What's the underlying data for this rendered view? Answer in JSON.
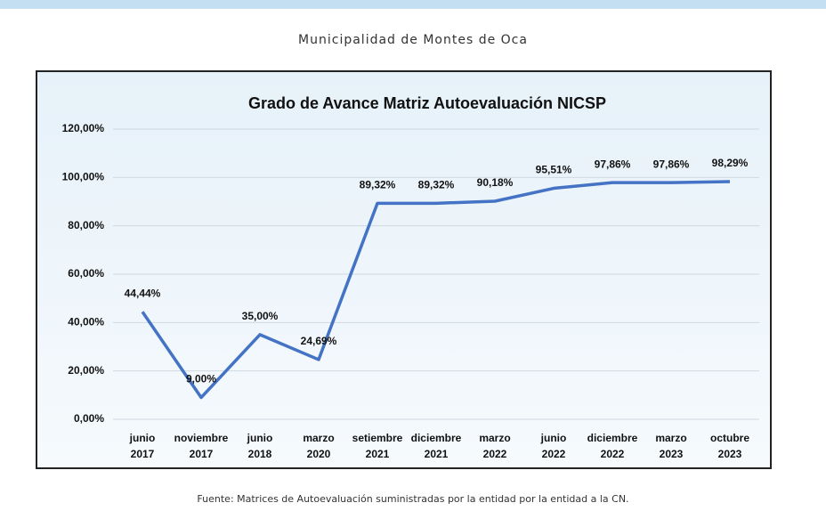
{
  "header": "Municipalidad de Montes de Oca",
  "source": "Fuente: Matrices de Autoevaluación suministradas por la entidad por la entidad a la CN.",
  "chart_data": {
    "type": "line",
    "title": "Grado de Avance Matriz Autoevaluación NICSP",
    "categories": [
      "junio 2017",
      "noviembre 2017",
      "junio 2018",
      "marzo 2020",
      "setiembre 2021",
      "diciembre 2021",
      "marzo 2022",
      "junio 2022",
      "diciembre 2022",
      "marzo 2023",
      "octubre 2023"
    ],
    "values": [
      44.44,
      9.0,
      35.0,
      24.69,
      89.32,
      89.32,
      90.18,
      95.51,
      97.86,
      97.86,
      98.29
    ],
    "value_labels": [
      "44,44%",
      "9,00%",
      "35,00%",
      "24,69%",
      "89,32%",
      "89,32%",
      "90,18%",
      "95,51%",
      "97,86%",
      "97,86%",
      "98,29%"
    ],
    "color": "#4472c4",
    "ylim": [
      0,
      120
    ],
    "yticks": [
      {
        "value": 0,
        "label": "0,00%"
      },
      {
        "value": 20,
        "label": "20,00%"
      },
      {
        "value": 40,
        "label": "40,00%"
      },
      {
        "value": 60,
        "label": "60,00%"
      },
      {
        "value": 80,
        "label": "80,00%"
      },
      {
        "value": 100,
        "label": "100,00%"
      },
      {
        "value": 120,
        "label": "120,00%"
      }
    ],
    "grid": true
  }
}
